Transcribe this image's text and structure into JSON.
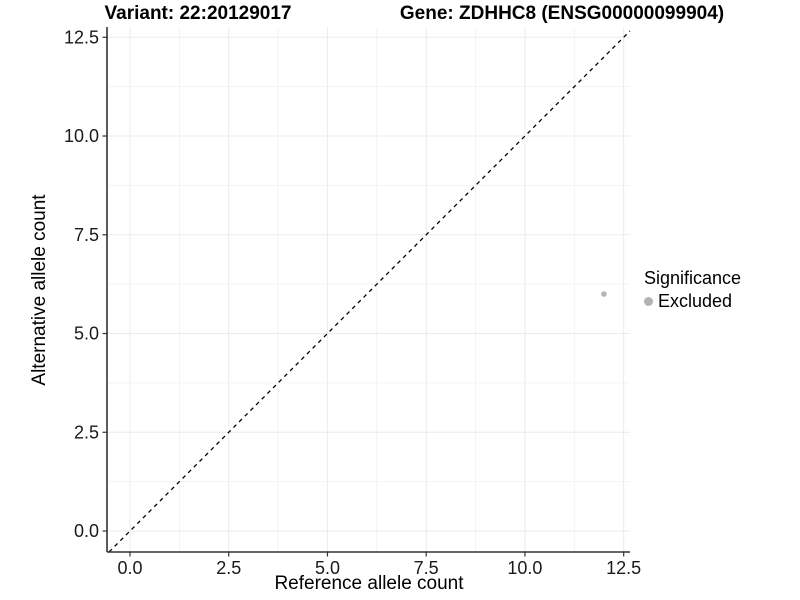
{
  "titles": {
    "variant": "Variant: 22:20129017",
    "gene": "Gene: ZDHHC8 (ENSG00000099904)"
  },
  "legend": {
    "title": "Significance",
    "items": [
      {
        "label": "Excluded",
        "color": "#b3b3b3"
      }
    ]
  },
  "colors": {
    "point": "#b4b4b4",
    "grid_major": "#ebebeb",
    "grid_minor": "#f3f3f3",
    "axis_line": "#333333",
    "tick_mark": "#333333",
    "tick_label": "#1a1a1a",
    "identity_line": "#000000",
    "background": "#ffffff"
  },
  "chart_data": {
    "type": "scatter",
    "title_left": "Variant: 22:20129017",
    "title_right": "Gene: ZDHHC8 (ENSG00000099904)",
    "xlabel": "Reference allele count",
    "ylabel": "Alternative allele count",
    "x_ticks": [
      0.0,
      2.5,
      5.0,
      7.5,
      10.0,
      12.5
    ],
    "y_ticks": [
      0.0,
      2.5,
      5.0,
      7.5,
      10.0,
      12.5
    ],
    "xlim": [
      -0.582,
      12.66
    ],
    "ylim": [
      -0.531,
      12.76
    ],
    "grid": "major+minor",
    "legend_position": "right",
    "identity_line": {
      "style": "dashed",
      "slope": 1,
      "intercept": 0
    },
    "series": [
      {
        "name": "Excluded",
        "points": [
          {
            "x": 12,
            "y": 6
          }
        ]
      }
    ]
  }
}
